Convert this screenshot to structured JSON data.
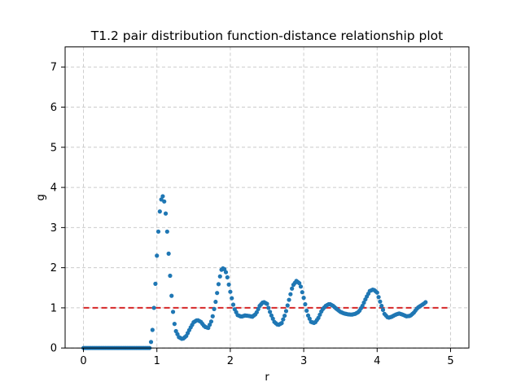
{
  "chart_data": {
    "type": "scatter",
    "title": "T1.2 pair distribution function-distance relationship plot",
    "xlabel": "r",
    "ylabel": "g",
    "xlim": [
      -0.25,
      5.25
    ],
    "ylim": [
      0,
      7.5
    ],
    "xticks": [
      0,
      1,
      2,
      3,
      4,
      5
    ],
    "yticks": [
      0,
      1,
      2,
      3,
      4,
      5,
      6,
      7
    ],
    "grid": true,
    "grid_style": "dashed",
    "colors": {
      "series": "#1f77b4",
      "reference": "#d62728",
      "grid": "#cccccc"
    },
    "series": [
      {
        "marker": "circle",
        "x_start": 0.0,
        "x_step": 0.02,
        "points_xy": [
          [
            0.0,
            0.0
          ],
          [
            0.8,
            0.0
          ],
          [
            0.9,
            0.0
          ],
          [
            0.92,
            0.15
          ],
          [
            0.94,
            0.45
          ],
          [
            0.96,
            1.0
          ],
          [
            0.98,
            1.6
          ],
          [
            1.0,
            2.3
          ],
          [
            1.02,
            2.9
          ],
          [
            1.04,
            3.4
          ],
          [
            1.06,
            3.7
          ],
          [
            1.08,
            3.78
          ],
          [
            1.1,
            3.65
          ],
          [
            1.12,
            3.35
          ],
          [
            1.14,
            2.9
          ],
          [
            1.16,
            2.35
          ],
          [
            1.18,
            1.8
          ],
          [
            1.2,
            1.3
          ],
          [
            1.22,
            0.9
          ],
          [
            1.24,
            0.6
          ],
          [
            1.26,
            0.42
          ],
          [
            1.3,
            0.27
          ],
          [
            1.35,
            0.22
          ],
          [
            1.4,
            0.3
          ],
          [
            1.45,
            0.48
          ],
          [
            1.5,
            0.64
          ],
          [
            1.55,
            0.7
          ],
          [
            1.6,
            0.65
          ],
          [
            1.65,
            0.53
          ],
          [
            1.7,
            0.5
          ],
          [
            1.75,
            0.7
          ],
          [
            1.8,
            1.15
          ],
          [
            1.85,
            1.7
          ],
          [
            1.88,
            1.95
          ],
          [
            1.91,
            2.0
          ],
          [
            1.95,
            1.85
          ],
          [
            2.0,
            1.4
          ],
          [
            2.05,
            1.0
          ],
          [
            2.1,
            0.82
          ],
          [
            2.15,
            0.78
          ],
          [
            2.2,
            0.81
          ],
          [
            2.25,
            0.8
          ],
          [
            2.3,
            0.78
          ],
          [
            2.35,
            0.85
          ],
          [
            2.4,
            1.05
          ],
          [
            2.45,
            1.15
          ],
          [
            2.5,
            1.1
          ],
          [
            2.55,
            0.85
          ],
          [
            2.6,
            0.65
          ],
          [
            2.65,
            0.57
          ],
          [
            2.7,
            0.62
          ],
          [
            2.75,
            0.85
          ],
          [
            2.8,
            1.2
          ],
          [
            2.85,
            1.55
          ],
          [
            2.9,
            1.67
          ],
          [
            2.95,
            1.6
          ],
          [
            3.0,
            1.25
          ],
          [
            3.05,
            0.85
          ],
          [
            3.1,
            0.65
          ],
          [
            3.15,
            0.62
          ],
          [
            3.2,
            0.75
          ],
          [
            3.25,
            0.95
          ],
          [
            3.3,
            1.05
          ],
          [
            3.35,
            1.1
          ],
          [
            3.4,
            1.05
          ],
          [
            3.45,
            0.97
          ],
          [
            3.5,
            0.9
          ],
          [
            3.55,
            0.86
          ],
          [
            3.6,
            0.84
          ],
          [
            3.65,
            0.83
          ],
          [
            3.7,
            0.85
          ],
          [
            3.75,
            0.9
          ],
          [
            3.8,
            1.05
          ],
          [
            3.85,
            1.25
          ],
          [
            3.9,
            1.42
          ],
          [
            3.95,
            1.46
          ],
          [
            4.0,
            1.38
          ],
          [
            4.05,
            1.1
          ],
          [
            4.1,
            0.85
          ],
          [
            4.15,
            0.75
          ],
          [
            4.2,
            0.78
          ],
          [
            4.25,
            0.83
          ],
          [
            4.3,
            0.86
          ],
          [
            4.35,
            0.83
          ],
          [
            4.4,
            0.79
          ],
          [
            4.45,
            0.8
          ],
          [
            4.5,
            0.88
          ],
          [
            4.55,
            1.0
          ],
          [
            4.6,
            1.06
          ],
          [
            4.65,
            1.12
          ],
          [
            4.66,
            1.14
          ]
        ]
      },
      {
        "style": "dashed-line",
        "x": [
          0,
          5
        ],
        "y": [
          1,
          1
        ]
      }
    ]
  }
}
